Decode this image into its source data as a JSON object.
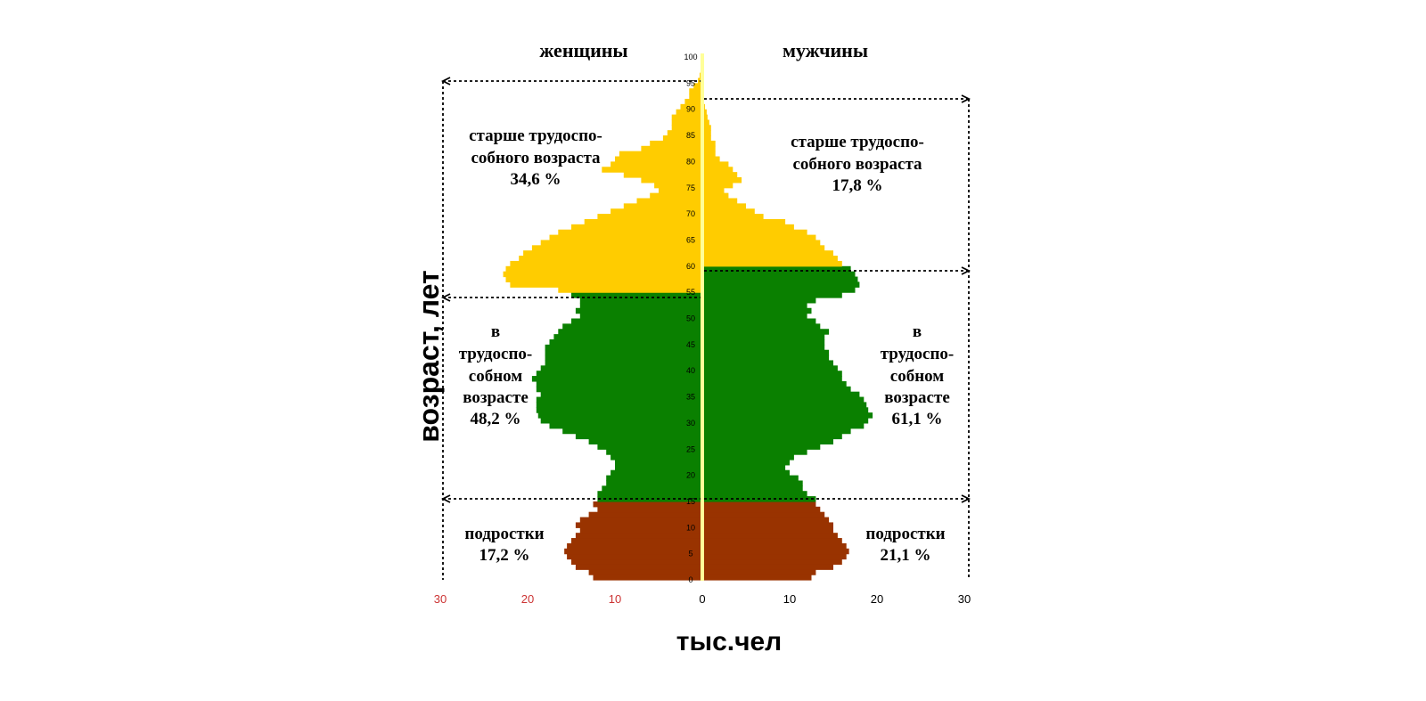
{
  "chart_data": {
    "type": "population-pyramid",
    "title": "",
    "side_labels": {
      "left": "женщины",
      "right": "мужчины"
    },
    "xlabel": "тыс.чел",
    "ylabel": "возраст, лет",
    "x_ticks_left": [
      "30",
      "20",
      "10"
    ],
    "x_ticks_right": [
      "0",
      "10",
      "20",
      "30"
    ],
    "x_range": [
      0,
      30
    ],
    "y_range": [
      0,
      100
    ],
    "y_ticks": [
      "0",
      "5",
      "10",
      "15",
      "20",
      "25",
      "30",
      "35",
      "40",
      "45",
      "50",
      "55",
      "60",
      "65",
      "70",
      "75",
      "80",
      "85",
      "90",
      "95",
      "100"
    ],
    "colors": {
      "teen": "#993300",
      "working": "#0a8000",
      "senior": "#ffcc00",
      "axis": "#ffff99",
      "neg_tick": "#cc3333"
    },
    "groups": {
      "female": {
        "teen_max_age": 15,
        "working_max_age": 55,
        "teen": {
          "line1": "подростки",
          "line2": "17,2 %"
        },
        "working": {
          "line1": "в",
          "line2": "трудоспо-",
          "line3": "собном",
          "line4": "возрасте",
          "line5": "48,2 %"
        },
        "senior": {
          "line1": "старше трудоспо-",
          "line2": "собного возраста",
          "line3": "34,6 %"
        }
      },
      "male": {
        "teen_max_age": 15,
        "working_max_age": 60,
        "teen": {
          "line1": "подростки",
          "line2": "21,1 %"
        },
        "working": {
          "line1": "в",
          "line2": "трудоспо-",
          "line3": "собном",
          "line4": "возрасте",
          "line5": "61,1 %"
        },
        "senior": {
          "line1": "старше трудоспо-",
          "line2": "собного возраста",
          "line3": "17,8 %"
        }
      }
    },
    "series": [
      {
        "name": "женщины",
        "values": [
          12.5,
          13.0,
          14.5,
          15.0,
          15.5,
          15.8,
          15.5,
          15.0,
          14.5,
          14.0,
          14.5,
          14.0,
          13.0,
          12.0,
          12.5,
          12.0,
          12.0,
          11.5,
          11.0,
          11.0,
          10.5,
          10.0,
          10.0,
          10.5,
          11.0,
          12.0,
          13.0,
          14.5,
          16.0,
          17.5,
          18.5,
          18.8,
          19.0,
          19.0,
          19.0,
          18.5,
          19.0,
          19.0,
          19.5,
          19.0,
          18.5,
          18.0,
          18.0,
          18.0,
          18.0,
          17.5,
          17.0,
          16.5,
          16.0,
          15.0,
          14.0,
          14.5,
          14.0,
          14.0,
          15.0,
          16.5,
          22.0,
          22.5,
          22.8,
          22.5,
          22.0,
          21.0,
          20.5,
          19.5,
          18.5,
          17.5,
          16.5,
          15.0,
          13.5,
          12.0,
          10.5,
          9.0,
          7.5,
          6.0,
          5.0,
          5.5,
          7.0,
          9.0,
          11.5,
          10.5,
          10.0,
          9.5,
          7.0,
          6.0,
          4.5,
          4.0,
          3.5,
          3.5,
          3.5,
          3.0,
          2.5,
          2.0,
          1.5,
          1.5,
          1.0,
          0.5,
          0.3,
          0.2,
          0.1,
          0.0
        ]
      },
      {
        "name": "мужчины",
        "values": [
          12.5,
          13.0,
          15.0,
          16.0,
          16.5,
          16.8,
          16.5,
          16.0,
          15.5,
          15.0,
          15.0,
          14.5,
          14.0,
          13.5,
          13.0,
          13.0,
          12.0,
          11.5,
          11.5,
          11.0,
          10.0,
          9.5,
          10.0,
          10.5,
          12.0,
          13.5,
          15.0,
          16.0,
          17.0,
          18.5,
          19.0,
          19.5,
          19.0,
          18.8,
          18.5,
          18.0,
          17.0,
          16.5,
          16.0,
          16.0,
          15.5,
          15.0,
          14.5,
          14.5,
          14.0,
          14.0,
          14.0,
          14.5,
          13.5,
          13.0,
          12.0,
          12.5,
          12.0,
          13.0,
          16.0,
          17.5,
          18.0,
          17.8,
          17.5,
          17.0,
          16.0,
          15.5,
          15.0,
          14.0,
          13.5,
          13.0,
          12.0,
          10.5,
          9.5,
          7.0,
          6.0,
          5.0,
          4.0,
          3.0,
          2.5,
          3.5,
          4.5,
          4.0,
          3.5,
          3.0,
          2.0,
          1.5,
          1.5,
          1.5,
          1.0,
          1.0,
          1.0,
          0.8,
          0.6,
          0.5,
          0.3,
          0.2,
          0.1,
          0.1,
          0.1,
          0.0,
          0.0,
          0.0,
          0.0,
          0.0
        ]
      }
    ]
  }
}
